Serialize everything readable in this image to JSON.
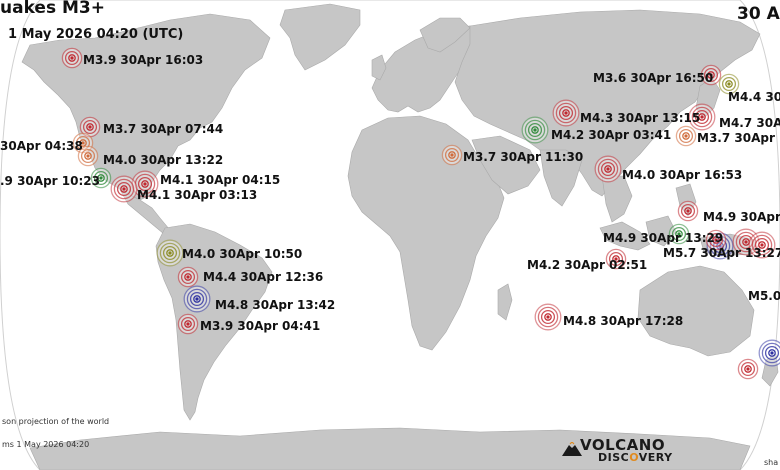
{
  "map": {
    "title": "uakes M3+",
    "subtitle": "1 May 2026 04:20 (UTC)",
    "period": "30 A",
    "projection_note": "son projection of the world",
    "footer_note": "ms 1 May 2026 04:20",
    "corner_note": "sha",
    "brand": {
      "line1": "VOLCANO",
      "line2_a": "DISC",
      "line2_b": "O",
      "line2_c": "VERY"
    },
    "colors": {
      "ocean": "#ffffff",
      "land": "#c6c6c6",
      "coast": "#a9a9a9",
      "red": "#c0282f",
      "green": "#2f8a3a",
      "blue": "#2c2fa0",
      "olive": "#8a8a22",
      "orange": "#d06a3a"
    }
  },
  "quakes": [
    {
      "label": "M3.9 30Apr 16:03",
      "color": "red"
    },
    {
      "label": "M3.7 30Apr 07:44",
      "color": "red"
    },
    {
      "label": "30Apr 04:38",
      "color": "orange"
    },
    {
      "label": "M4.0 30Apr 13:22",
      "color": "orange"
    },
    {
      "label": ".9 30Apr 10:23",
      "color": "green"
    },
    {
      "label": "M4.1 30Apr 04:15",
      "color": "red"
    },
    {
      "label": "M4.1 30Apr 03:13",
      "color": "red"
    },
    {
      "label": "M4.0 30Apr 10:50",
      "color": "olive"
    },
    {
      "label": "M4.4 30Apr 12:36",
      "color": "red"
    },
    {
      "label": "M4.8 30Apr 13:42",
      "color": "blue"
    },
    {
      "label": "M3.9 30Apr 04:41",
      "color": "red"
    },
    {
      "label": "M3.7 30Apr 11:30",
      "color": "orange"
    },
    {
      "label": "M3.6 30Apr 16:50",
      "color": "red"
    },
    {
      "label": "M4.4 30A",
      "color": "olive"
    },
    {
      "label": "M4.3 30Apr 13:15",
      "color": "red"
    },
    {
      "label": "M4.2 30Apr 03:41",
      "color": "green"
    },
    {
      "label": "M4.7 30Ap",
      "color": "red"
    },
    {
      "label": "M3.7 30Apr 1",
      "color": "orange"
    },
    {
      "label": "M4.0 30Apr 16:53",
      "color": "red"
    },
    {
      "label": "M4.9 30Apr 1",
      "color": "red"
    },
    {
      "label": "M4.9 30Apr 13:29",
      "color": "green"
    },
    {
      "label": "M5.7 30Apr 13:27",
      "color": "blue"
    },
    {
      "label": "M4.2 30Apr 02:51",
      "color": "red"
    },
    {
      "label": "M4.8 30Apr 17:28",
      "color": "red"
    },
    {
      "label": "M5.0 ",
      "color": "blue"
    },
    {
      "label": "",
      "color": "red"
    },
    {
      "label": "",
      "color": "red"
    },
    {
      "label": "",
      "color": "red"
    },
    {
      "label": "",
      "color": "red"
    }
  ]
}
